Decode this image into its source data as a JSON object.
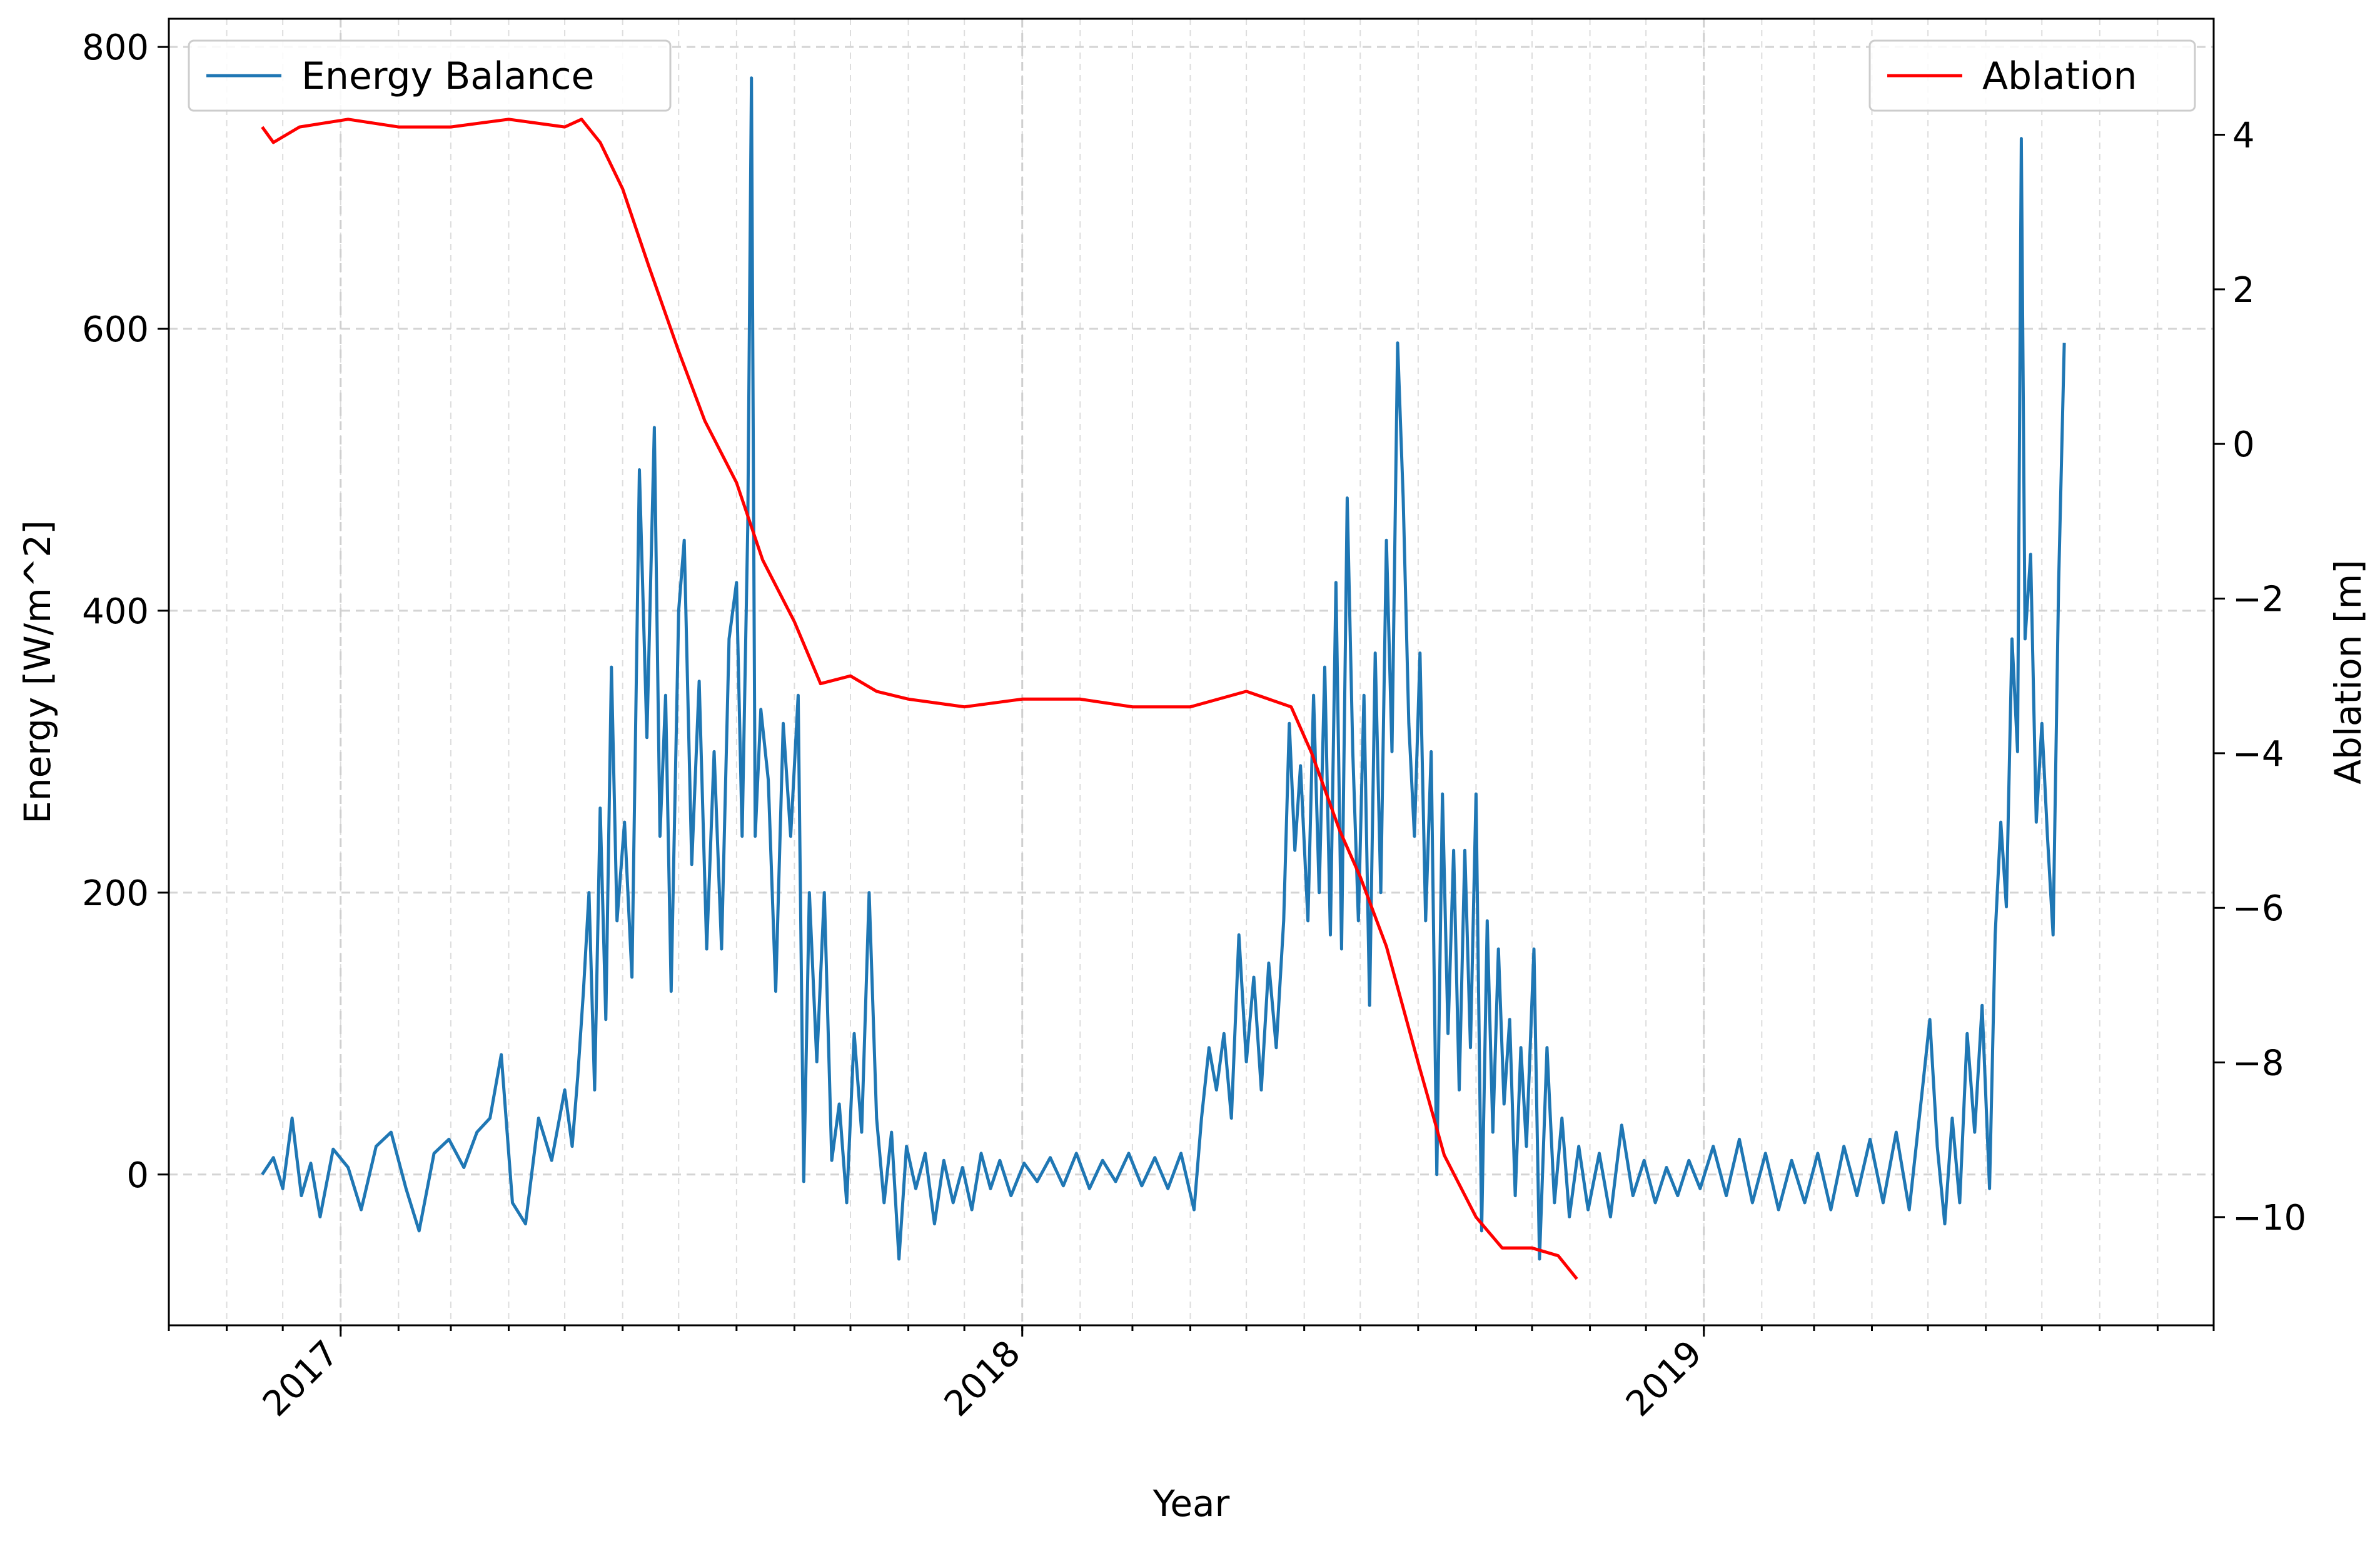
{
  "chart_data": {
    "type": "line",
    "title": "",
    "xlabel": "Year",
    "ylabel_left": "Energy [W/m^2]",
    "ylabel_right": "Ablation [m]",
    "x_ticks": [
      "2017",
      "2018",
      "2019"
    ],
    "y_left_ticks": [
      "0",
      "200",
      "400",
      "600",
      "800"
    ],
    "y_right_ticks": [
      "−10",
      "−8",
      "−6",
      "−4",
      "−2",
      "0",
      "2",
      "4"
    ],
    "xlim": [
      "2016-10-01",
      "2019-10-01"
    ],
    "ylim_left": [
      -107,
      820
    ],
    "ylim_right": [
      -11.4,
      5.5
    ],
    "grid": true,
    "series": [
      {
        "name": "Energy Balance",
        "axis": "left",
        "color": "#1f77b4",
        "legend_position": "upper-left",
        "points": [
          [
            "2016-11-20",
            0
          ],
          [
            "2016-11-26",
            12
          ],
          [
            "2016-12-01",
            -10
          ],
          [
            "2016-12-06",
            40
          ],
          [
            "2016-12-11",
            -15
          ],
          [
            "2016-12-16",
            8
          ],
          [
            "2016-12-21",
            -30
          ],
          [
            "2016-12-28",
            18
          ],
          [
            "2017-01-05",
            5
          ],
          [
            "2017-01-12",
            -25
          ],
          [
            "2017-01-20",
            20
          ],
          [
            "2017-01-28",
            30
          ],
          [
            "2017-02-05",
            -10
          ],
          [
            "2017-02-12",
            -40
          ],
          [
            "2017-02-20",
            15
          ],
          [
            "2017-02-28",
            25
          ],
          [
            "2017-03-08",
            5
          ],
          [
            "2017-03-15",
            30
          ],
          [
            "2017-03-22",
            40
          ],
          [
            "2017-03-28",
            85
          ],
          [
            "2017-04-03",
            -20
          ],
          [
            "2017-04-10",
            -35
          ],
          [
            "2017-04-17",
            40
          ],
          [
            "2017-04-24",
            10
          ],
          [
            "2017-05-01",
            60
          ],
          [
            "2017-05-05",
            20
          ],
          [
            "2017-05-08",
            70
          ],
          [
            "2017-05-11",
            130
          ],
          [
            "2017-05-14",
            200
          ],
          [
            "2017-05-17",
            60
          ],
          [
            "2017-05-20",
            260
          ],
          [
            "2017-05-23",
            110
          ],
          [
            "2017-05-26",
            360
          ],
          [
            "2017-05-29",
            180
          ],
          [
            "2017-06-02",
            250
          ],
          [
            "2017-06-06",
            140
          ],
          [
            "2017-06-10",
            500
          ],
          [
            "2017-06-14",
            310
          ],
          [
            "2017-06-18",
            530
          ],
          [
            "2017-06-21",
            240
          ],
          [
            "2017-06-24",
            340
          ],
          [
            "2017-06-27",
            130
          ],
          [
            "2017-07-01",
            400
          ],
          [
            "2017-07-04",
            450
          ],
          [
            "2017-07-08",
            220
          ],
          [
            "2017-07-12",
            350
          ],
          [
            "2017-07-16",
            160
          ],
          [
            "2017-07-20",
            300
          ],
          [
            "2017-07-24",
            160
          ],
          [
            "2017-07-28",
            380
          ],
          [
            "2017-08-01",
            420
          ],
          [
            "2017-08-04",
            240
          ],
          [
            "2017-08-07",
            460
          ],
          [
            "2017-08-09",
            778
          ],
          [
            "2017-08-11",
            240
          ],
          [
            "2017-08-14",
            330
          ],
          [
            "2017-08-18",
            280
          ],
          [
            "2017-08-22",
            130
          ],
          [
            "2017-08-26",
            320
          ],
          [
            "2017-08-30",
            240
          ],
          [
            "2017-09-03",
            340
          ],
          [
            "2017-09-06",
            -5
          ],
          [
            "2017-09-09",
            200
          ],
          [
            "2017-09-13",
            80
          ],
          [
            "2017-09-17",
            200
          ],
          [
            "2017-09-21",
            10
          ],
          [
            "2017-09-25",
            50
          ],
          [
            "2017-09-29",
            -20
          ],
          [
            "2017-10-03",
            100
          ],
          [
            "2017-10-07",
            30
          ],
          [
            "2017-10-11",
            200
          ],
          [
            "2017-10-15",
            40
          ],
          [
            "2017-10-19",
            -20
          ],
          [
            "2017-10-23",
            30
          ],
          [
            "2017-10-27",
            -60
          ],
          [
            "2017-10-31",
            20
          ],
          [
            "2017-11-05",
            -10
          ],
          [
            "2017-11-10",
            15
          ],
          [
            "2017-11-15",
            -35
          ],
          [
            "2017-11-20",
            10
          ],
          [
            "2017-11-25",
            -20
          ],
          [
            "2017-11-30",
            5
          ],
          [
            "2017-12-05",
            -25
          ],
          [
            "2017-12-10",
            15
          ],
          [
            "2017-12-15",
            -10
          ],
          [
            "2017-12-20",
            10
          ],
          [
            "2017-12-26",
            -15
          ],
          [
            "2018-01-02",
            8
          ],
          [
            "2018-01-09",
            -5
          ],
          [
            "2018-01-16",
            12
          ],
          [
            "2018-01-23",
            -8
          ],
          [
            "2018-01-30",
            15
          ],
          [
            "2018-02-06",
            -10
          ],
          [
            "2018-02-13",
            10
          ],
          [
            "2018-02-20",
            -5
          ],
          [
            "2018-02-27",
            15
          ],
          [
            "2018-03-06",
            -8
          ],
          [
            "2018-03-13",
            12
          ],
          [
            "2018-03-20",
            -10
          ],
          [
            "2018-03-27",
            15
          ],
          [
            "2018-04-03",
            -25
          ],
          [
            "2018-04-07",
            40
          ],
          [
            "2018-04-11",
            90
          ],
          [
            "2018-04-15",
            60
          ],
          [
            "2018-04-19",
            100
          ],
          [
            "2018-04-23",
            40
          ],
          [
            "2018-04-27",
            170
          ],
          [
            "2018-05-01",
            80
          ],
          [
            "2018-05-05",
            140
          ],
          [
            "2018-05-09",
            60
          ],
          [
            "2018-05-13",
            150
          ],
          [
            "2018-05-17",
            90
          ],
          [
            "2018-05-21",
            180
          ],
          [
            "2018-05-24",
            320
          ],
          [
            "2018-05-27",
            230
          ],
          [
            "2018-05-30",
            290
          ],
          [
            "2018-06-03",
            180
          ],
          [
            "2018-06-06",
            340
          ],
          [
            "2018-06-09",
            200
          ],
          [
            "2018-06-12",
            360
          ],
          [
            "2018-06-15",
            170
          ],
          [
            "2018-06-18",
            420
          ],
          [
            "2018-06-21",
            160
          ],
          [
            "2018-06-24",
            480
          ],
          [
            "2018-06-27",
            300
          ],
          [
            "2018-06-30",
            180
          ],
          [
            "2018-07-03",
            340
          ],
          [
            "2018-07-06",
            120
          ],
          [
            "2018-07-09",
            370
          ],
          [
            "2018-07-12",
            200
          ],
          [
            "2018-07-15",
            450
          ],
          [
            "2018-07-18",
            300
          ],
          [
            "2018-07-21",
            590
          ],
          [
            "2018-07-24",
            480
          ],
          [
            "2018-07-27",
            320
          ],
          [
            "2018-07-30",
            240
          ],
          [
            "2018-08-02",
            370
          ],
          [
            "2018-08-05",
            180
          ],
          [
            "2018-08-08",
            300
          ],
          [
            "2018-08-11",
            0
          ],
          [
            "2018-08-14",
            270
          ],
          [
            "2018-08-17",
            100
          ],
          [
            "2018-08-20",
            230
          ],
          [
            "2018-08-23",
            60
          ],
          [
            "2018-08-26",
            230
          ],
          [
            "2018-08-29",
            90
          ],
          [
            "2018-09-01",
            270
          ],
          [
            "2018-09-04",
            -40
          ],
          [
            "2018-09-07",
            180
          ],
          [
            "2018-09-10",
            30
          ],
          [
            "2018-09-13",
            160
          ],
          [
            "2018-09-16",
            50
          ],
          [
            "2018-09-19",
            110
          ],
          [
            "2018-09-22",
            -15
          ],
          [
            "2018-09-25",
            90
          ],
          [
            "2018-09-28",
            20
          ],
          [
            "2018-10-02",
            160
          ],
          [
            "2018-10-05",
            -60
          ],
          [
            "2018-10-09",
            90
          ],
          [
            "2018-10-13",
            -20
          ],
          [
            "2018-10-17",
            40
          ],
          [
            "2018-10-21",
            -30
          ],
          [
            "2018-10-26",
            20
          ],
          [
            "2018-10-31",
            -25
          ],
          [
            "2018-11-06",
            15
          ],
          [
            "2018-11-12",
            -30
          ],
          [
            "2018-11-18",
            35
          ],
          [
            "2018-11-24",
            -15
          ],
          [
            "2018-11-30",
            10
          ],
          [
            "2018-12-06",
            -20
          ],
          [
            "2018-12-12",
            5
          ],
          [
            "2018-12-18",
            -15
          ],
          [
            "2018-12-24",
            10
          ],
          [
            "2018-12-30",
            -10
          ],
          [
            "2019-01-06",
            20
          ],
          [
            "2019-01-13",
            -15
          ],
          [
            "2019-01-20",
            25
          ],
          [
            "2019-01-27",
            -20
          ],
          [
            "2019-02-03",
            15
          ],
          [
            "2019-02-10",
            -25
          ],
          [
            "2019-02-17",
            10
          ],
          [
            "2019-02-24",
            -20
          ],
          [
            "2019-03-03",
            15
          ],
          [
            "2019-03-10",
            -25
          ],
          [
            "2019-03-17",
            20
          ],
          [
            "2019-03-24",
            -15
          ],
          [
            "2019-03-31",
            25
          ],
          [
            "2019-04-07",
            -20
          ],
          [
            "2019-04-14",
            30
          ],
          [
            "2019-04-21",
            -25
          ],
          [
            "2019-04-28",
            60
          ],
          [
            "2019-05-02",
            110
          ],
          [
            "2019-05-06",
            20
          ],
          [
            "2019-05-10",
            -35
          ],
          [
            "2019-05-14",
            40
          ],
          [
            "2019-05-18",
            -20
          ],
          [
            "2019-05-22",
            100
          ],
          [
            "2019-05-26",
            30
          ],
          [
            "2019-05-30",
            120
          ],
          [
            "2019-06-03",
            -10
          ],
          [
            "2019-06-06",
            170
          ],
          [
            "2019-06-09",
            250
          ],
          [
            "2019-06-12",
            190
          ],
          [
            "2019-06-15",
            380
          ],
          [
            "2019-06-18",
            300
          ],
          [
            "2019-06-20",
            735
          ],
          [
            "2019-06-22",
            380
          ],
          [
            "2019-06-25",
            440
          ],
          [
            "2019-06-28",
            250
          ],
          [
            "2019-07-01",
            320
          ],
          [
            "2019-07-04",
            240
          ],
          [
            "2019-07-07",
            170
          ],
          [
            "2019-07-10",
            420
          ],
          [
            "2019-07-13",
            590
          ]
        ]
      },
      {
        "name": "Ablation",
        "axis": "right",
        "color": "#ff0000",
        "legend_position": "upper-right",
        "points": [
          [
            "2016-11-20",
            4.1
          ],
          [
            "2016-11-26",
            3.9
          ],
          [
            "2016-12-10",
            4.1
          ],
          [
            "2017-01-05",
            4.2
          ],
          [
            "2017-02-01",
            4.1
          ],
          [
            "2017-03-01",
            4.1
          ],
          [
            "2017-04-01",
            4.2
          ],
          [
            "2017-05-01",
            4.1
          ],
          [
            "2017-05-10",
            4.2
          ],
          [
            "2017-05-20",
            3.9
          ],
          [
            "2017-06-01",
            3.3
          ],
          [
            "2017-06-15",
            2.3
          ],
          [
            "2017-07-01",
            1.2
          ],
          [
            "2017-07-15",
            0.3
          ],
          [
            "2017-08-01",
            -0.5
          ],
          [
            "2017-08-15",
            -1.5
          ],
          [
            "2017-09-01",
            -2.3
          ],
          [
            "2017-09-15",
            -3.1
          ],
          [
            "2017-10-01",
            -3.0
          ],
          [
            "2017-10-15",
            -3.2
          ],
          [
            "2017-11-01",
            -3.3
          ],
          [
            "2017-12-01",
            -3.4
          ],
          [
            "2018-01-01",
            -3.3
          ],
          [
            "2018-02-01",
            -3.3
          ],
          [
            "2018-03-01",
            -3.4
          ],
          [
            "2018-04-01",
            -3.4
          ],
          [
            "2018-05-01",
            -3.2
          ],
          [
            "2018-05-25",
            -3.4
          ],
          [
            "2018-06-05",
            -4.0
          ],
          [
            "2018-06-20",
            -5.0
          ],
          [
            "2018-07-01",
            -5.6
          ],
          [
            "2018-07-15",
            -6.5
          ],
          [
            "2018-08-01",
            -8.0
          ],
          [
            "2018-08-15",
            -9.2
          ],
          [
            "2018-09-01",
            -10.0
          ],
          [
            "2018-09-15",
            -10.4
          ],
          [
            "2018-10-01",
            -10.4
          ],
          [
            "2018-10-15",
            -10.5
          ],
          [
            "2018-10-25",
            -10.8
          ]
        ]
      }
    ]
  }
}
